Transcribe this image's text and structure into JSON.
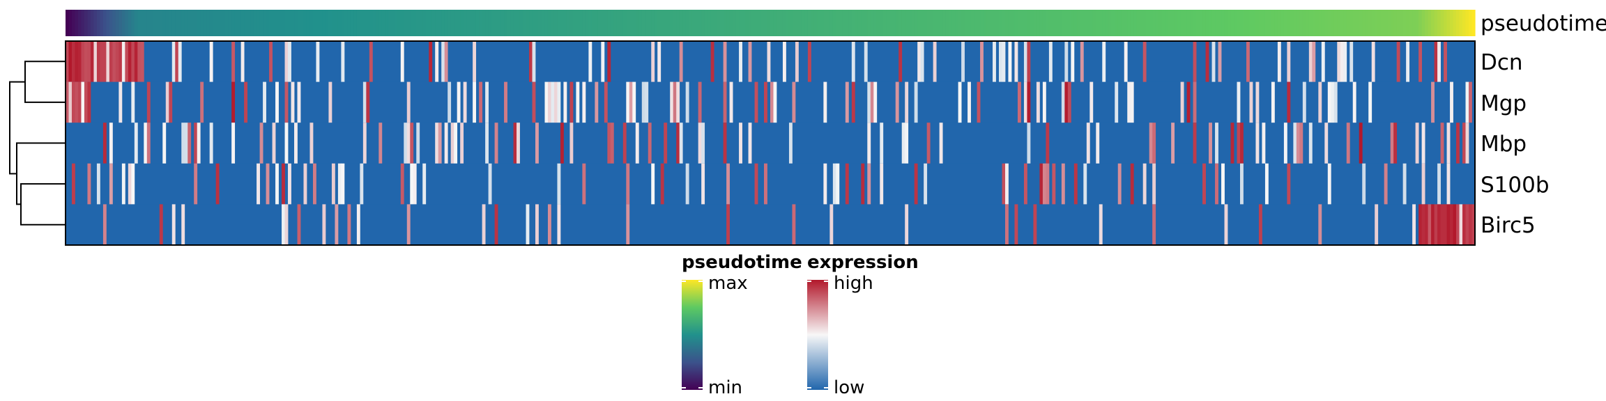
{
  "chart_data": {
    "type": "heatmap",
    "annotation": {
      "label": "pseudotime"
    },
    "rows": [
      "Dcn",
      "Mgp",
      "Mbp",
      "S100b",
      "Birc5"
    ],
    "dendrogram_order": [
      "Dcn",
      "Mgp",
      "Mbp",
      "S100b",
      "Birc5"
    ],
    "n_columns": 450,
    "expression_events": [
      {
        "gene": "Dcn",
        "cells_from": 0,
        "cells_to": 25,
        "level": "high"
      },
      {
        "gene": "Mgp",
        "cells_from": 0,
        "cells_to": 8,
        "level": "high"
      },
      {
        "gene": "Birc5",
        "cells_from": 432,
        "cells_to": 450,
        "level": "high"
      }
    ],
    "colors": {
      "low": "#2166ac",
      "mid": "#f7f7f7",
      "high": "#b2182b",
      "viridis": [
        "#440154",
        "#3b528b",
        "#21918c",
        "#5ec962",
        "#fde725"
      ]
    },
    "legends": [
      {
        "title": "pseudotime",
        "top_label": "max",
        "bottom_label": "min"
      },
      {
        "title": "expression",
        "top_label": "high",
        "bottom_label": "low"
      }
    ]
  }
}
